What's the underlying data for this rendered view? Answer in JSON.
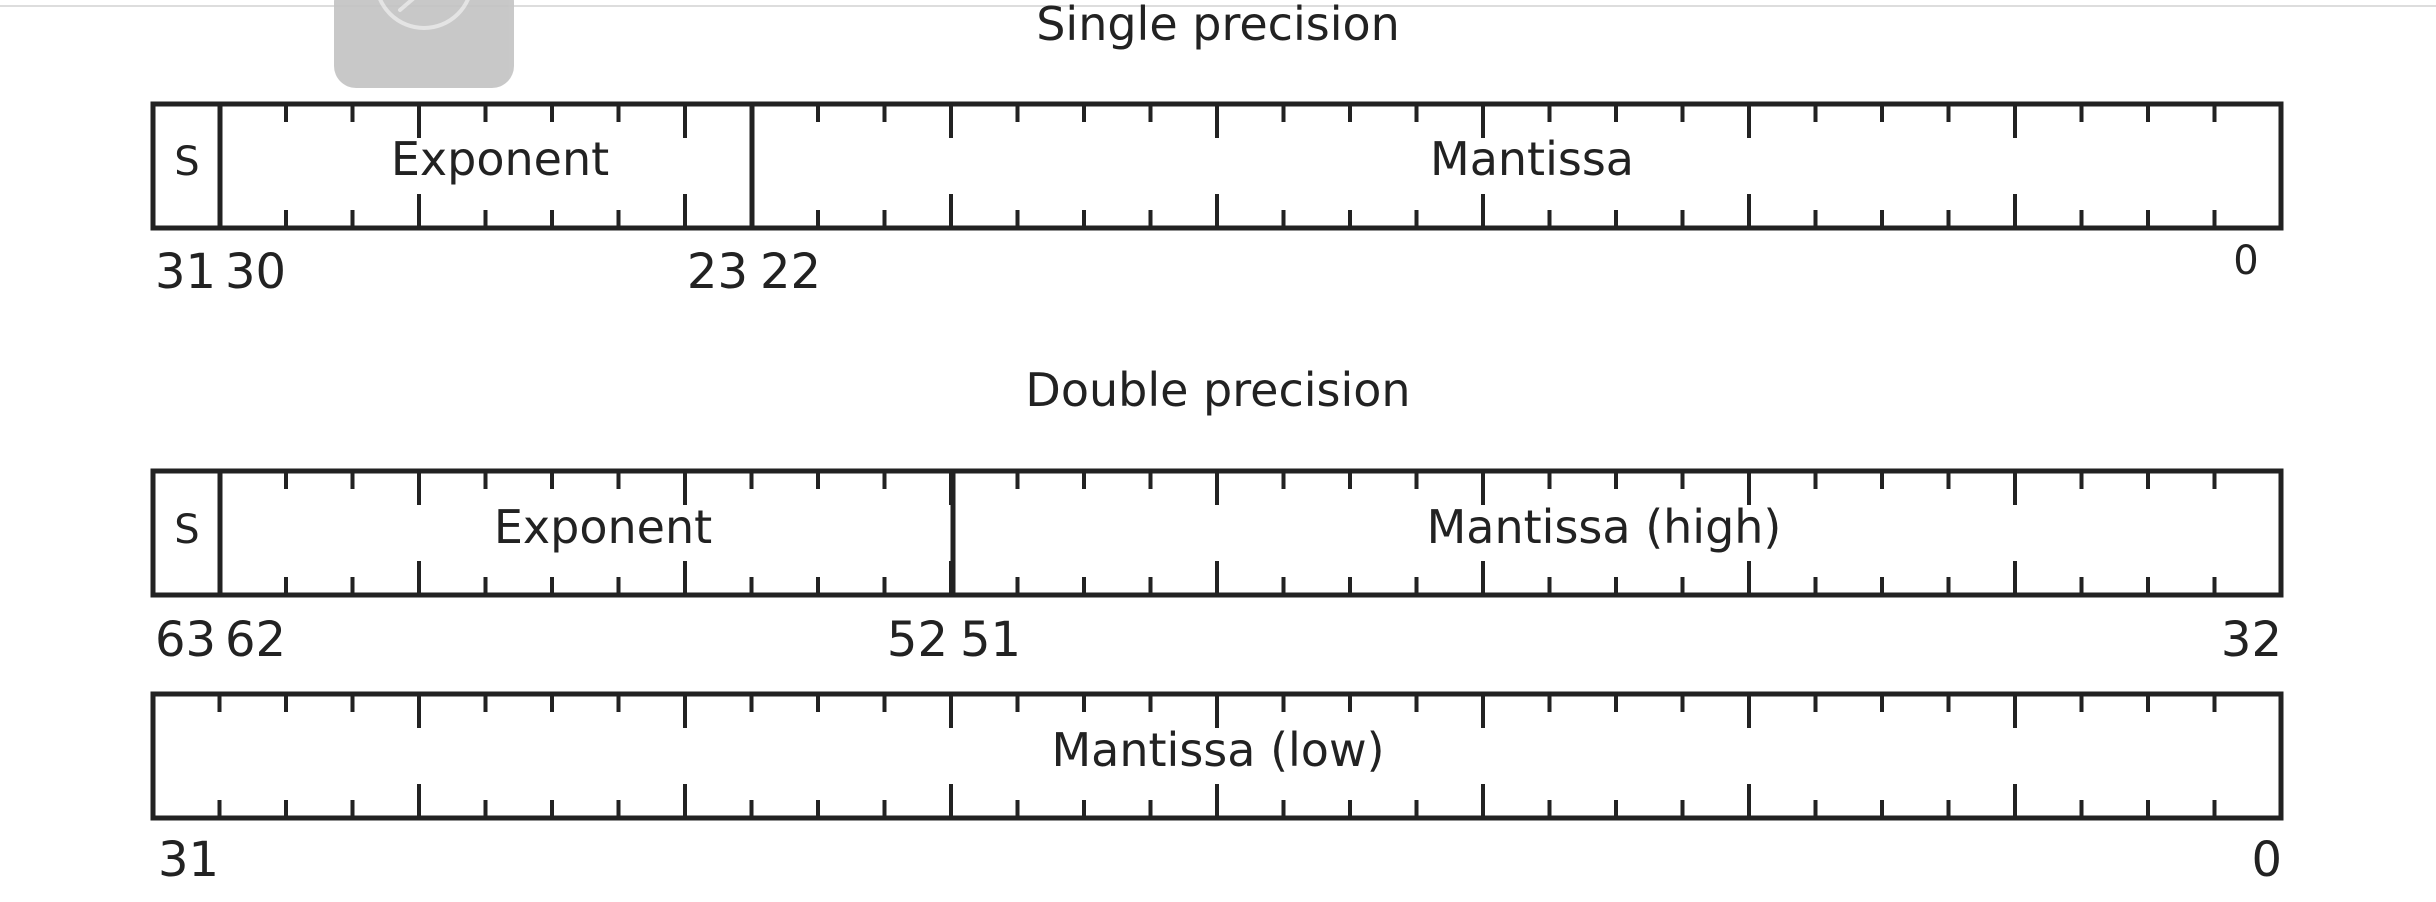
{
  "colors": {
    "stroke": "#222222",
    "text": "#222222",
    "background": "#ffffff",
    "overlay": "#c4c4c4"
  },
  "overlay": {
    "icon": "pencil-icon"
  },
  "single": {
    "title": "Single precision",
    "fields": [
      {
        "label": "S",
        "msb": 31,
        "lsb": 31
      },
      {
        "label": "Exponent",
        "msb": 30,
        "lsb": 23
      },
      {
        "label": "Mantissa",
        "msb": 22,
        "lsb": 0
      }
    ],
    "bit_labels": [
      "31",
      "30",
      "23",
      "22",
      "0"
    ]
  },
  "double": {
    "title": "Double precision",
    "row_high": {
      "fields": [
        {
          "label": "S",
          "msb": 63,
          "lsb": 63
        },
        {
          "label": "Exponent",
          "msb": 62,
          "lsb": 52
        },
        {
          "label": "Mantissa (high)",
          "msb": 51,
          "lsb": 32
        }
      ],
      "bit_labels": [
        "63",
        "62",
        "52",
        "51",
        "32"
      ]
    },
    "row_low": {
      "fields": [
        {
          "label": "Mantissa (low)",
          "msb": 31,
          "lsb": 0
        }
      ],
      "bit_labels": [
        "31",
        "0"
      ]
    }
  }
}
